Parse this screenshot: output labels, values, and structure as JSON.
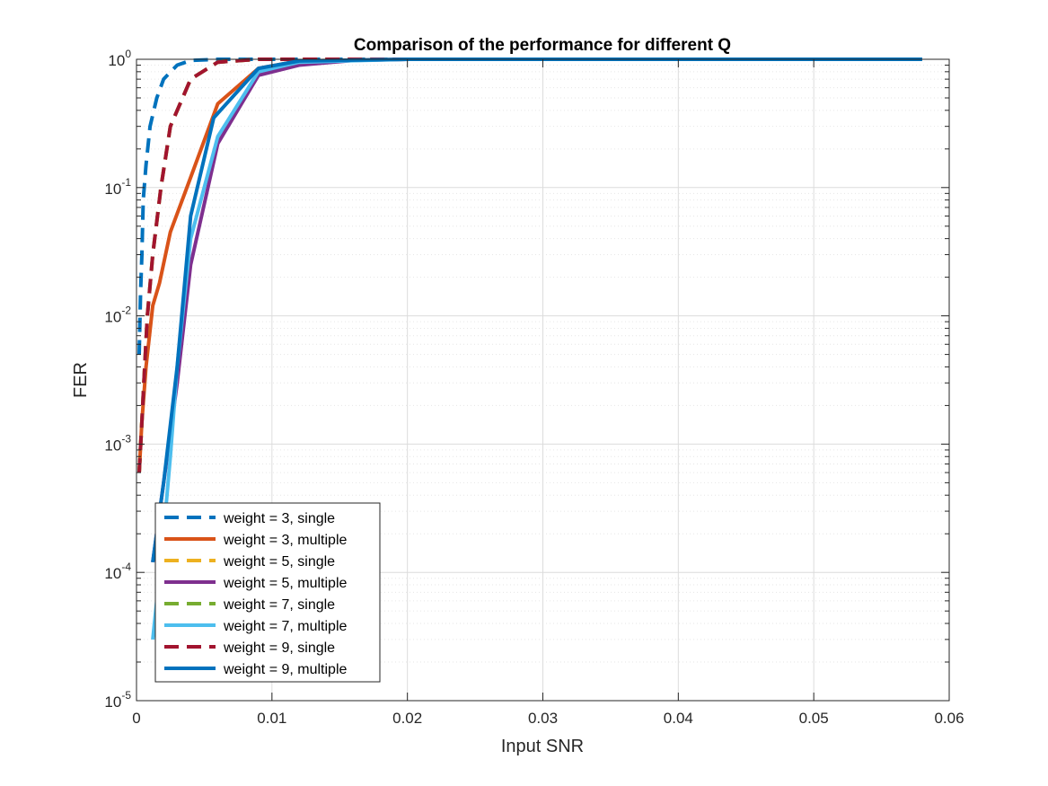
{
  "chart_data": {
    "type": "line",
    "title": "Comparison of the performance for different Q",
    "xlabel": "Input SNR",
    "ylabel": "FER",
    "xlim": [
      0,
      0.06
    ],
    "ylim_log10": [
      -5,
      0
    ],
    "yscale": "log",
    "grid": true,
    "minor_grid": true,
    "legend_position": "bottom-left",
    "x_ticks": [
      0,
      0.01,
      0.02,
      0.03,
      0.04,
      0.05,
      0.06
    ],
    "x_tick_labels": [
      "0",
      "0.01",
      "0.02",
      "0.03",
      "0.04",
      "0.05",
      "0.06"
    ],
    "y_ticks": [
      {
        "value": 1e-05,
        "base": "10",
        "exp": "-5"
      },
      {
        "value": 0.0001,
        "base": "10",
        "exp": "-4"
      },
      {
        "value": 0.001,
        "base": "10",
        "exp": "-3"
      },
      {
        "value": 0.01,
        "base": "10",
        "exp": "-2"
      },
      {
        "value": 0.1,
        "base": "10",
        "exp": "-1"
      },
      {
        "value": 1,
        "base": "10",
        "exp": "0"
      }
    ],
    "series": [
      {
        "name": "weight = 3, single",
        "style": "dashed",
        "color": "#0072BD",
        "points": [
          [
            0.0002,
            0.005
          ],
          [
            0.0003,
            0.015
          ],
          [
            0.0004,
            0.03
          ],
          [
            0.0005,
            0.08
          ],
          [
            0.0007,
            0.15
          ],
          [
            0.001,
            0.3
          ],
          [
            0.0015,
            0.5
          ],
          [
            0.002,
            0.7
          ],
          [
            0.003,
            0.9
          ],
          [
            0.004,
            0.98
          ],
          [
            0.006,
            1
          ],
          [
            0.01,
            1
          ],
          [
            0.02,
            1
          ],
          [
            0.04,
            1
          ],
          [
            0.058,
            1
          ]
        ]
      },
      {
        "name": "weight = 3, multiple",
        "style": "solid",
        "color": "#D95319",
        "points": [
          [
            0.0002,
            0.0006
          ],
          [
            0.0004,
            0.0015
          ],
          [
            0.0007,
            0.004
          ],
          [
            0.0012,
            0.012
          ],
          [
            0.0017,
            0.018
          ],
          [
            0.0025,
            0.045
          ],
          [
            0.004,
            0.12
          ],
          [
            0.006,
            0.45
          ],
          [
            0.009,
            0.85
          ],
          [
            0.012,
            0.97
          ],
          [
            0.02,
            1
          ],
          [
            0.04,
            1
          ],
          [
            0.056,
            1
          ]
        ]
      },
      {
        "name": "weight = 5, single",
        "style": "dashed",
        "color": "#EDB120",
        "points": [
          [
            0.0002,
            0.0006
          ],
          [
            0.0004,
            0.0015
          ],
          [
            0.0006,
            0.004
          ],
          [
            0.0008,
            0.01
          ],
          [
            0.0012,
            0.03
          ],
          [
            0.0018,
            0.1
          ],
          [
            0.0025,
            0.3
          ],
          [
            0.004,
            0.7
          ],
          [
            0.006,
            0.95
          ],
          [
            0.009,
            1
          ],
          [
            0.02,
            1
          ],
          [
            0.04,
            1
          ],
          [
            0.056,
            1
          ]
        ]
      },
      {
        "name": "weight = 5, multiple",
        "style": "solid",
        "color": "#7E2F8E",
        "points": [
          [
            0.0012,
            0.00012
          ],
          [
            0.002,
            0.0005
          ],
          [
            0.003,
            0.003
          ],
          [
            0.004,
            0.025
          ],
          [
            0.006,
            0.22
          ],
          [
            0.009,
            0.75
          ],
          [
            0.012,
            0.9
          ],
          [
            0.016,
            0.98
          ],
          [
            0.02,
            1
          ],
          [
            0.04,
            1
          ],
          [
            0.056,
            1
          ]
        ]
      },
      {
        "name": "weight = 7, single",
        "style": "dashed",
        "color": "#77AC30",
        "points": [
          [
            0.0002,
            0.0006
          ],
          [
            0.0004,
            0.0015
          ],
          [
            0.0006,
            0.004
          ],
          [
            0.0008,
            0.01
          ],
          [
            0.0012,
            0.03
          ],
          [
            0.0018,
            0.1
          ],
          [
            0.0025,
            0.3
          ],
          [
            0.004,
            0.7
          ],
          [
            0.006,
            0.95
          ],
          [
            0.009,
            1
          ],
          [
            0.02,
            1
          ],
          [
            0.04,
            1
          ],
          [
            0.056,
            1
          ]
        ]
      },
      {
        "name": "weight = 7, multiple",
        "style": "solid",
        "color": "#4DBEEE",
        "points": [
          [
            0.0012,
            3e-05
          ],
          [
            0.002,
            0.0002
          ],
          [
            0.0025,
            0.0008
          ],
          [
            0.003,
            0.004
          ],
          [
            0.004,
            0.04
          ],
          [
            0.006,
            0.25
          ],
          [
            0.009,
            0.8
          ],
          [
            0.012,
            0.95
          ],
          [
            0.02,
            1
          ],
          [
            0.04,
            1
          ],
          [
            0.056,
            1
          ]
        ]
      },
      {
        "name": "weight = 9, single",
        "style": "dashed",
        "color": "#A2142F",
        "points": [
          [
            0.0002,
            0.0006
          ],
          [
            0.0004,
            0.0015
          ],
          [
            0.0006,
            0.004
          ],
          [
            0.0008,
            0.01
          ],
          [
            0.0012,
            0.03
          ],
          [
            0.0018,
            0.1
          ],
          [
            0.0025,
            0.3
          ],
          [
            0.004,
            0.7
          ],
          [
            0.006,
            0.95
          ],
          [
            0.009,
            1
          ],
          [
            0.02,
            1
          ],
          [
            0.04,
            1
          ],
          [
            0.056,
            1
          ]
        ]
      },
      {
        "name": "weight = 9, multiple",
        "style": "solid",
        "color": "#0072BD",
        "points": [
          [
            0.0012,
            0.00012
          ],
          [
            0.002,
            0.0005
          ],
          [
            0.003,
            0.004
          ],
          [
            0.004,
            0.06
          ],
          [
            0.0057,
            0.35
          ],
          [
            0.009,
            0.85
          ],
          [
            0.012,
            0.97
          ],
          [
            0.02,
            1
          ],
          [
            0.04,
            1
          ],
          [
            0.058,
            1
          ]
        ]
      }
    ]
  }
}
